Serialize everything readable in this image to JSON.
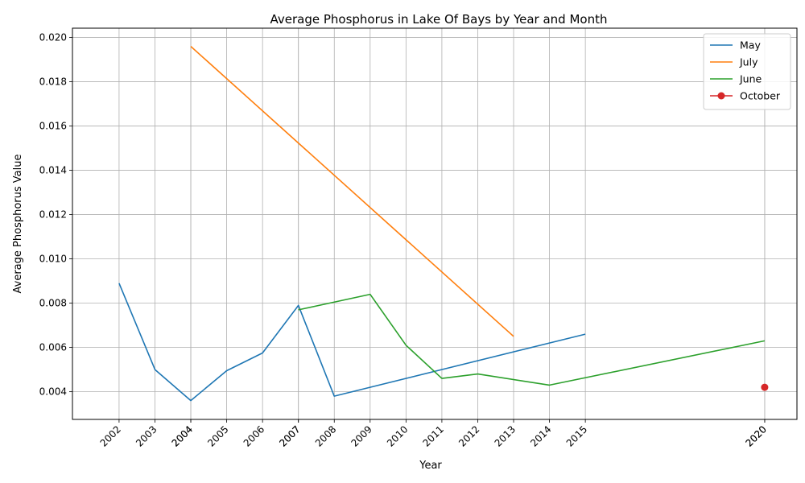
{
  "chart_data": {
    "type": "line",
    "title": "Average Phosphorus in Lake Of Bays by Year and Month",
    "xlabel": "Year",
    "ylabel": "Average Phosphorus Value",
    "xlim": [
      2000.7,
      2020.9
    ],
    "ylim": [
      0.00275,
      0.02042
    ],
    "grid": true,
    "legend_position": "top-right",
    "x_ticks": [
      "2002",
      "2003",
      "2004",
      "2004",
      "2005",
      "2006",
      "2007",
      "2007",
      "2008",
      "2009",
      "2010",
      "2011",
      "2012",
      "2013",
      "2014",
      "2015",
      "2020",
      "2020"
    ],
    "x_tick_values": [
      2002,
      2003,
      2004,
      2004,
      2005,
      2006,
      2007,
      2007,
      2008,
      2009,
      2010,
      2011,
      2012,
      2013,
      2014,
      2015,
      2020,
      2020
    ],
    "y_ticks": [
      "0.004",
      "0.006",
      "0.008",
      "0.010",
      "0.012",
      "0.014",
      "0.016",
      "0.018",
      "0.020"
    ],
    "y_tick_values": [
      0.004,
      0.006,
      0.008,
      0.01,
      0.012,
      0.014,
      0.016,
      0.018,
      0.02
    ],
    "series": [
      {
        "name": "May",
        "color": "#1f77b4",
        "marker": false,
        "x": [
          2002,
          2003,
          2004,
          2005,
          2006,
          2007,
          2008,
          2015
        ],
        "y": [
          0.0089,
          0.005,
          0.0036,
          0.00495,
          0.00575,
          0.0079,
          0.0038,
          0.0066
        ]
      },
      {
        "name": "July",
        "color": "#ff7f0e",
        "marker": false,
        "x": [
          2004,
          2013
        ],
        "y": [
          0.0196,
          0.0065
        ]
      },
      {
        "name": "June",
        "color": "#2ca02c",
        "marker": false,
        "x": [
          2007,
          2009,
          2010,
          2011,
          2012,
          2014,
          2020
        ],
        "y": [
          0.0077,
          0.0084,
          0.0061,
          0.0046,
          0.0048,
          0.0043,
          0.0063
        ]
      },
      {
        "name": "October",
        "color": "#d62728",
        "marker": true,
        "x": [
          2020
        ],
        "y": [
          0.0042
        ]
      }
    ]
  }
}
